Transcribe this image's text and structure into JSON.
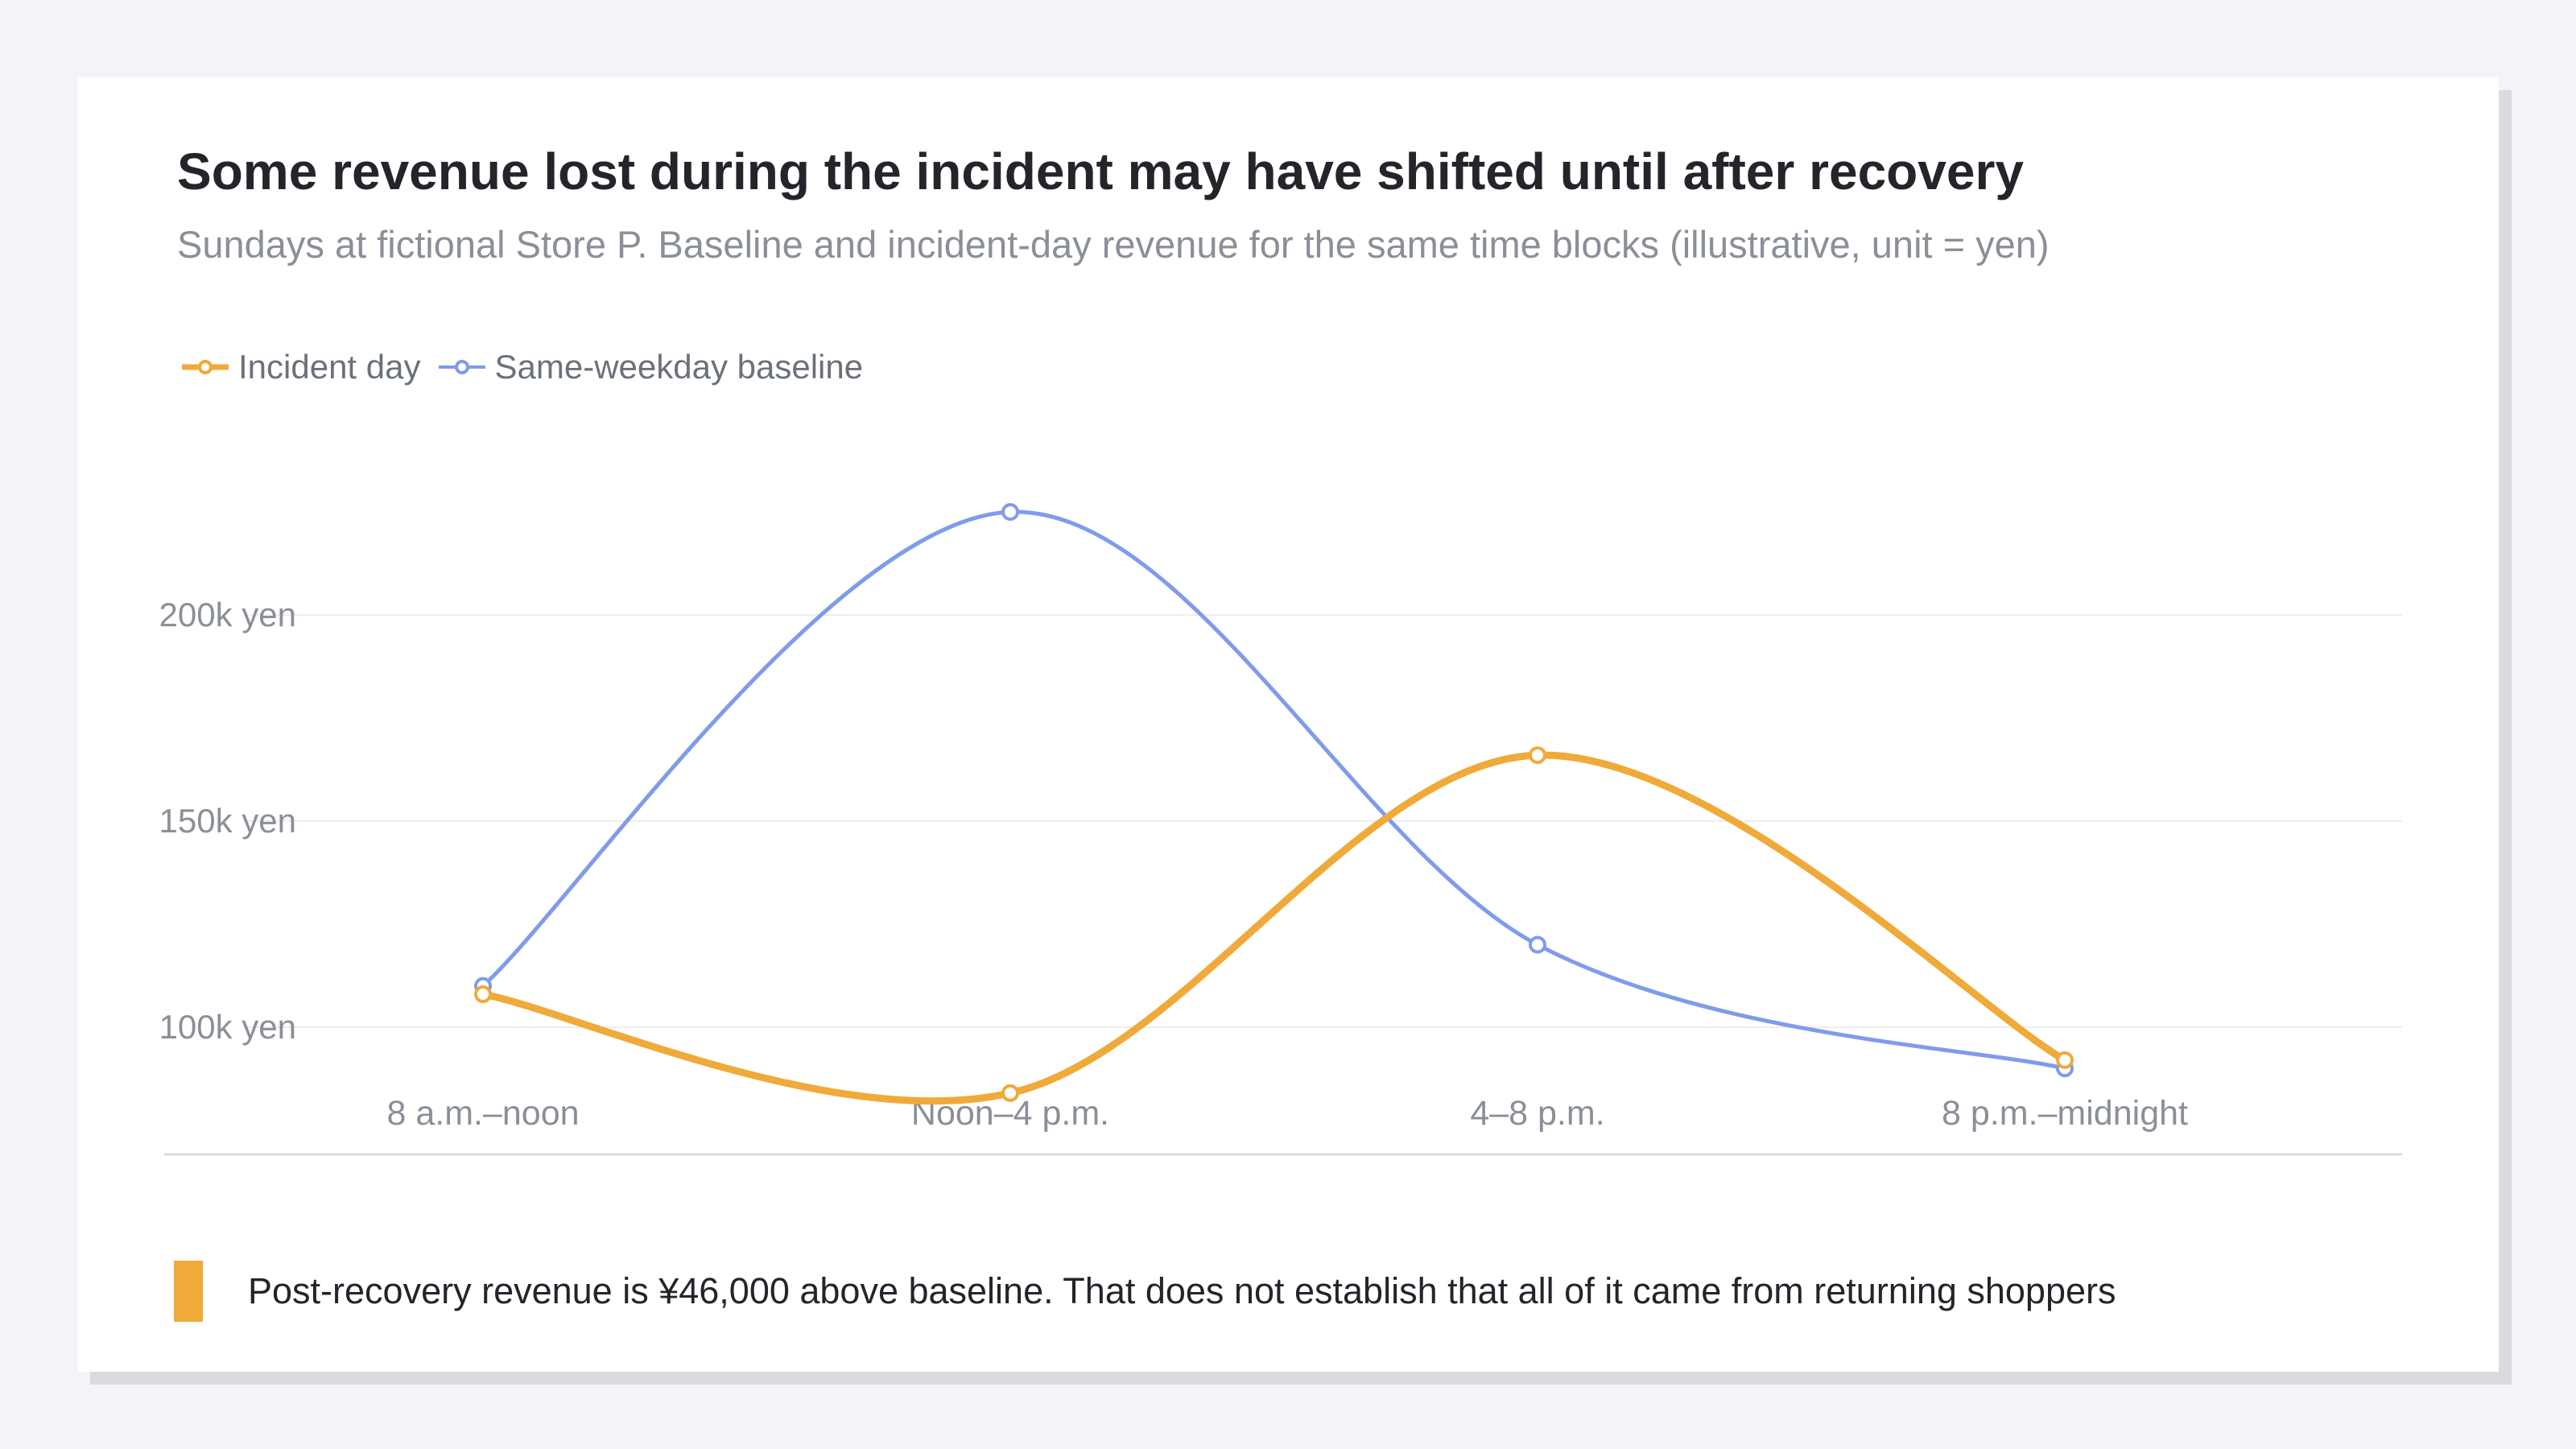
{
  "title": "Some revenue lost during the incident may have shifted until after recovery",
  "subtitle": "Sundays at fictional Store P. Baseline and incident-day revenue for the same time blocks (illustrative, unit = yen)",
  "callout": "Post-recovery revenue is ¥46,000 above baseline. That does not establish that all of it came from returning shoppers",
  "colors": {
    "incident": "#f0aa3a",
    "baseline": "#7f9ceb",
    "callout": "#f0aa3a",
    "grid": "#eeeeee",
    "axis": "#dddddd",
    "tick_text": "#8a8f98"
  },
  "chart_data": {
    "type": "line",
    "categories": [
      "8 a.m.–noon",
      "Noon–4 p.m.",
      "4–8 p.m.",
      "8 p.m.–midnight"
    ],
    "series": [
      {
        "name": "Incident day",
        "values": [
          108000,
          84000,
          166000,
          92000
        ]
      },
      {
        "name": "Same-weekday baseline",
        "values": [
          110000,
          225000,
          120000,
          90000
        ]
      }
    ],
    "y_ticks": [
      100000,
      150000,
      200000
    ],
    "y_tick_labels": [
      "100k yen",
      "150k yen",
      "200k yen"
    ],
    "ylim": [
      70000,
      240000
    ],
    "legend_position": "top-left",
    "grid": true
  }
}
